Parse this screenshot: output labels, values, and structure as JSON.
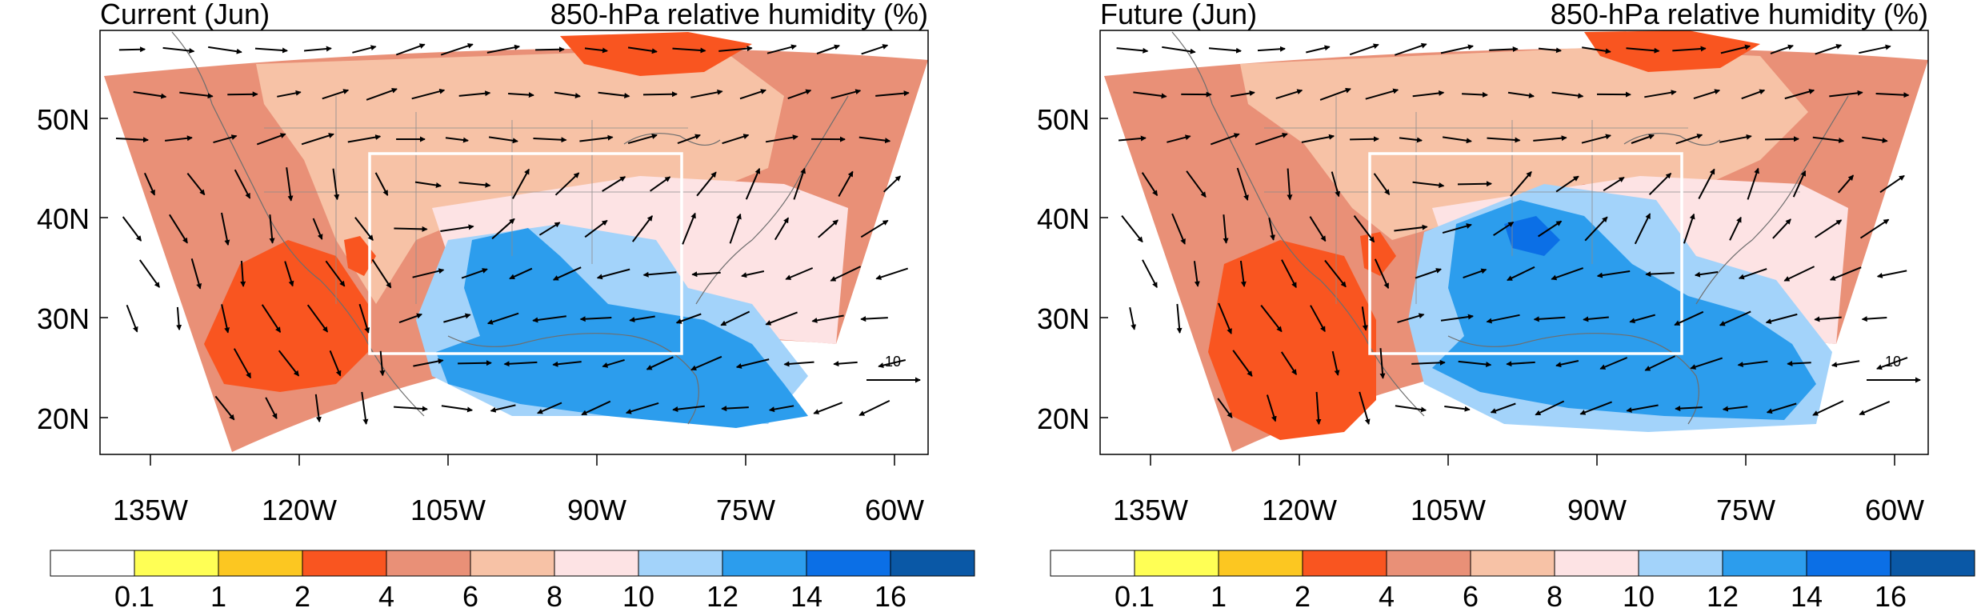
{
  "chart_data": [
    {
      "type": "heatmap",
      "title_left": "Current (Jun)",
      "title_right": "850-hPa relative humidity (%)",
      "lat_ticks": [
        "20N",
        "30N",
        "40N",
        "50N"
      ],
      "lon_ticks": [
        "135W",
        "120W",
        "105W",
        "90W",
        "75W",
        "60W"
      ],
      "reference_vector_label": "10",
      "color_bins": [
        "#ffffff",
        "#ffff55",
        "#fcc721",
        "#f95520",
        "#e99077",
        "#f7c2a6",
        "#fde3e4",
        "#a3d3fa",
        "#2c9ded",
        "#0b6fe6",
        "#0a58a6"
      ],
      "colorbar_labels": [
        "0.1",
        "1",
        "2",
        "4",
        "6",
        "8",
        "10",
        "12",
        "14",
        "16"
      ]
    },
    {
      "type": "heatmap",
      "title_left": "Future (Jun)",
      "title_right": "850-hPa relative humidity (%)",
      "lat_ticks": [
        "20N",
        "30N",
        "40N",
        "50N"
      ],
      "lon_ticks": [
        "135W",
        "120W",
        "105W",
        "90W",
        "75W",
        "60W"
      ],
      "reference_vector_label": "10",
      "color_bins": [
        "#ffffff",
        "#ffff55",
        "#fcc721",
        "#f95520",
        "#e99077",
        "#f7c2a6",
        "#fde3e4",
        "#a3d3fa",
        "#2c9ded",
        "#0b6fe6",
        "#0a58a6"
      ],
      "colorbar_labels": [
        "0.1",
        "1",
        "2",
        "4",
        "6",
        "8",
        "10",
        "12",
        "14",
        "16"
      ]
    }
  ]
}
